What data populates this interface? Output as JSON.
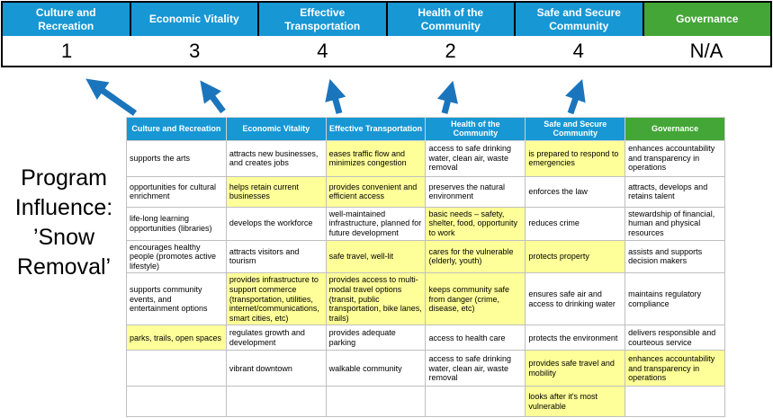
{
  "colors": {
    "blue": "#1797D4",
    "green": "#43A636",
    "arrow": "#1B75BC",
    "hl": "#FFFF99"
  },
  "slide": {
    "program_label_lines": [
      "Program",
      "Influence:",
      "’Snow",
      "Removal’"
    ]
  },
  "scoreboard": {
    "columns": [
      {
        "label": "Culture and Recreation",
        "score": "1",
        "color": "blue"
      },
      {
        "label": "Economic Vitality",
        "score": "3",
        "color": "blue"
      },
      {
        "label": "Effective Transportation",
        "score": "4",
        "color": "blue"
      },
      {
        "label": "Health of the Community",
        "score": "2",
        "color": "blue"
      },
      {
        "label": "Safe and Secure Community",
        "score": "4",
        "color": "blue"
      },
      {
        "label": "Governance",
        "score": "N/A",
        "color": "green"
      }
    ]
  },
  "matrix": {
    "headers": [
      {
        "label": "Culture and Recreation",
        "color": "blue"
      },
      {
        "label": "Economic Vitality",
        "color": "blue"
      },
      {
        "label": "Effective Transportation",
        "color": "blue"
      },
      {
        "label": "Health of the Community",
        "color": "blue"
      },
      {
        "label": "Safe and Secure Community",
        "color": "blue"
      },
      {
        "label": "Governance",
        "color": "green"
      }
    ],
    "rows": [
      [
        {
          "t": "supports the arts",
          "hl": false
        },
        {
          "t": "attracts new businesses, and creates jobs",
          "hl": false
        },
        {
          "t": "eases traffic flow and minimizes congestion",
          "hl": true
        },
        {
          "t": "access to safe drinking water, clean air, waste removal",
          "hl": false
        },
        {
          "t": "is prepared to respond to emergencies",
          "hl": true
        },
        {
          "t": "enhances accountability and transparency in operations",
          "hl": false
        }
      ],
      [
        {
          "t": "opportunities for cultural enrichment",
          "hl": false
        },
        {
          "t": "helps retain current businesses",
          "hl": true
        },
        {
          "t": "provides convenient and efficient access",
          "hl": true
        },
        {
          "t": "preserves the natural environment",
          "hl": false
        },
        {
          "t": "enforces the law",
          "hl": false
        },
        {
          "t": "attracts, develops and retains talent",
          "hl": false
        }
      ],
      [
        {
          "t": "life-long learning opportunities (libraries)",
          "hl": false
        },
        {
          "t": "develops the workforce",
          "hl": false
        },
        {
          "t": "well-maintained infrastructure, planned for future development",
          "hl": false
        },
        {
          "t": "basic needs – safety, shelter, food, opportunity to work",
          "hl": true
        },
        {
          "t": "reduces crime",
          "hl": false
        },
        {
          "t": "stewardship of financial, human and physical resources",
          "hl": false
        }
      ],
      [
        {
          "t": "encourages healthy people (promotes active lifestyle)",
          "hl": false
        },
        {
          "t": "attracts visitors and tourism",
          "hl": false
        },
        {
          "t": "safe travel, well-lit",
          "hl": true
        },
        {
          "t": "cares for the vulnerable (elderly, youth)",
          "hl": true
        },
        {
          "t": "protects property",
          "hl": true
        },
        {
          "t": "assists and supports decision makers",
          "hl": false
        }
      ],
      [
        {
          "t": "supports community events, and entertainment options",
          "hl": false
        },
        {
          "t": "provides infrastructure to support commerce (transportation, utilities, internet/communications, smart cities, etc)",
          "hl": true
        },
        {
          "t": "provides access to multi-modal travel options (transit, public transportation, bike lanes, trails)",
          "hl": true
        },
        {
          "t": "keeps community safe from danger (crime, disease, etc)",
          "hl": true
        },
        {
          "t": "ensures safe air and access to drinking water",
          "hl": false
        },
        {
          "t": "maintains regulatory compliance",
          "hl": false
        }
      ],
      [
        {
          "t": "parks, trails, open spaces",
          "hl": true
        },
        {
          "t": "regulates growth and development",
          "hl": false
        },
        {
          "t": "provides adequate parking",
          "hl": false
        },
        {
          "t": "access to health care",
          "hl": false
        },
        {
          "t": "protects the environment",
          "hl": false
        },
        {
          "t": "delivers responsible and courteous service",
          "hl": false
        }
      ],
      [
        {
          "t": "",
          "hl": false
        },
        {
          "t": "vibrant downtown",
          "hl": false
        },
        {
          "t": "walkable community",
          "hl": false
        },
        {
          "t": "access to safe drinking water, clean air, waste removal",
          "hl": false
        },
        {
          "t": "provides safe travel and mobility",
          "hl": true
        },
        {
          "t": "enhances accountability and transparency in operations",
          "hl": true
        }
      ],
      [
        {
          "t": "",
          "hl": false
        },
        {
          "t": "",
          "hl": false
        },
        {
          "t": "",
          "hl": false
        },
        {
          "t": "",
          "hl": false
        },
        {
          "t": "looks after it's most vulnerable",
          "hl": true
        },
        {
          "t": "",
          "hl": false
        }
      ]
    ]
  }
}
